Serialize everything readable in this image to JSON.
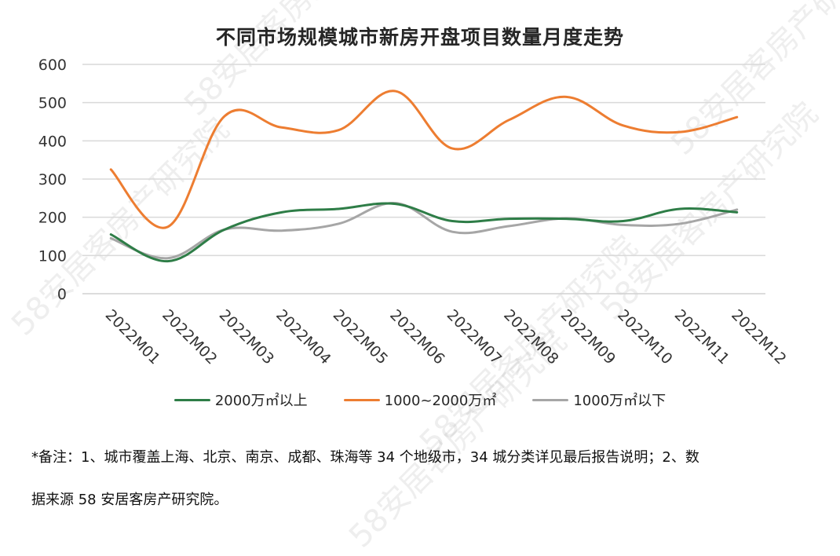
{
  "watermark_text": "58安居客房产研究院",
  "note": {
    "line1": "*备注：1、城市覆盖上海、北京、南京、成都、珠海等 34 个地级市，34 城分类详见最后报告说明；2、数",
    "line2": "据来源 58 安居客房产研究院。"
  },
  "chart_data": {
    "type": "line",
    "title": "不同市场规模城市新房开盘项目数量月度走势",
    "xlabel": "",
    "ylabel": "",
    "categories": [
      "2022M01",
      "2022M02",
      "2022M03",
      "2022M04",
      "2022M05",
      "2022M06",
      "2022M07",
      "2022M08",
      "2022M09",
      "2022M10",
      "2022M11",
      "2022M12"
    ],
    "ylim": [
      0,
      600
    ],
    "yticks": [
      0,
      100,
      200,
      300,
      400,
      500,
      600
    ],
    "grid": true,
    "legend_position": "bottom",
    "smooth": true,
    "series": [
      {
        "name": "2000万㎡以上",
        "color": "#2e7d47",
        "values": [
          155,
          85,
          168,
          213,
          222,
          235,
          190,
          196,
          196,
          190,
          222,
          213
        ]
      },
      {
        "name": "1000~2000万㎡",
        "color": "#ed7d31",
        "values": [
          325,
          175,
          465,
          435,
          428,
          530,
          380,
          455,
          515,
          440,
          423,
          462
        ]
      },
      {
        "name": "1000万㎡以下",
        "color": "#a6a6a6",
        "values": [
          145,
          93,
          168,
          165,
          183,
          237,
          162,
          177,
          197,
          180,
          183,
          220
        ]
      }
    ]
  }
}
